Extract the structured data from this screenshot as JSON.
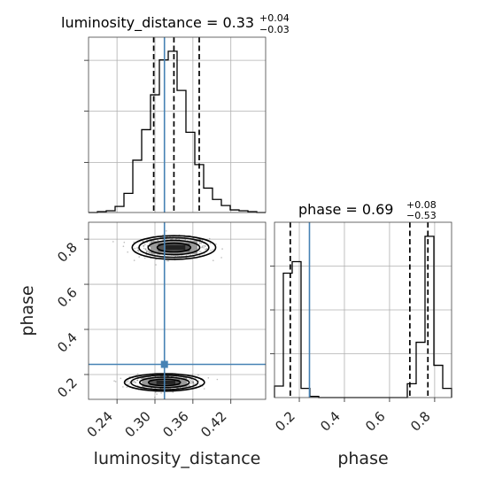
{
  "chart_data": {
    "type": "corner",
    "colors": {
      "truth": "#4682b4",
      "hist": "#000000",
      "quantile": "#000000",
      "grid": "#b0b0b0"
    },
    "truths": {
      "luminosity_distance": 0.315,
      "phase": 0.245
    },
    "parameters": [
      {
        "name": "luminosity_distance",
        "xlabel": "luminosity_distance",
        "title_main": "luminosity_distance = 0.33",
        "title_plus": "+0.04",
        "title_minus": "−0.03",
        "median": 0.33,
        "err_plus": 0.04,
        "err_minus": 0.03,
        "quantiles": [
          0.298,
          0.33,
          0.37
        ],
        "range": [
          0.195,
          0.475
        ],
        "ticks": [
          0.24,
          0.3,
          0.36,
          0.42
        ],
        "tick_labels": [
          "0.24",
          "0.30",
          "0.36",
          "0.42"
        ]
      },
      {
        "name": "phase",
        "xlabel": "phase",
        "ylabel": "phase",
        "title_main": "phase = 0.69",
        "title_plus": "+0.08",
        "title_minus": "−0.53",
        "median": 0.69,
        "err_plus": 0.08,
        "err_minus": 0.53,
        "quantiles": [
          0.16,
          0.69,
          0.77
        ],
        "range": [
          0.09,
          0.875
        ],
        "ticks": [
          0.2,
          0.4,
          0.6,
          0.8
        ],
        "tick_labels": [
          "0.2",
          "0.4",
          "0.6",
          "0.8"
        ]
      }
    ],
    "hist_luminosity_distance": {
      "bin_edges": [
        0.195,
        0.209,
        0.223,
        0.237,
        0.251,
        0.265,
        0.279,
        0.293,
        0.307,
        0.321,
        0.335,
        0.349,
        0.363,
        0.377,
        0.391,
        0.405,
        0.419,
        0.433,
        0.447,
        0.461,
        0.475
      ],
      "counts": [
        0,
        1,
        2,
        7,
        22,
        60,
        95,
        135,
        175,
        185,
        140,
        92,
        55,
        28,
        15,
        8,
        3,
        2,
        1,
        0
      ],
      "peak": 185
    },
    "hist_phase": {
      "bin_edges": [
        0.09,
        0.12925,
        0.1685,
        0.20775,
        0.247,
        0.28625,
        0.3255,
        0.36475,
        0.404,
        0.44325,
        0.4825,
        0.52175,
        0.561,
        0.60025,
        0.6395,
        0.67875,
        0.718,
        0.75725,
        0.7965,
        0.83575,
        0.875
      ],
      "counts": [
        10,
        108,
        118,
        8,
        1,
        0,
        0,
        0,
        0,
        0,
        0,
        0,
        0,
        0,
        0,
        12,
        48,
        140,
        28,
        8
      ],
      "peak": 140
    },
    "clusters": [
      {
        "center": [
          0.33,
          0.763
        ],
        "spread": [
          0.024,
          0.03
        ]
      },
      {
        "center": [
          0.315,
          0.165
        ],
        "spread": [
          0.023,
          0.022
        ]
      }
    ]
  }
}
